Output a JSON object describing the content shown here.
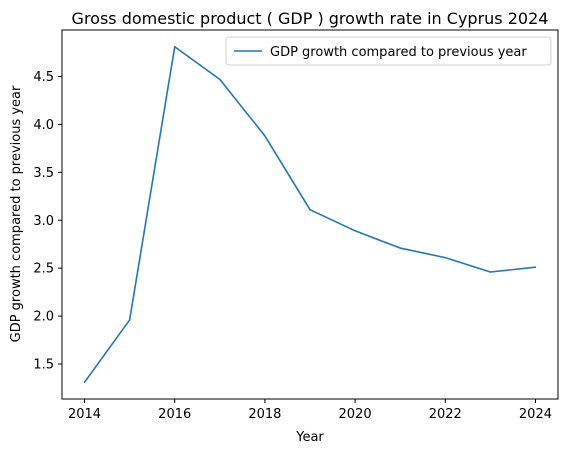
{
  "chart_data": {
    "type": "line",
    "title": "Gross domestic product ( GDP ) growth rate in Cyprus 2024",
    "xlabel": "Year",
    "ylabel": "GDP growth compared to previous year",
    "x": [
      2014,
      2015,
      2016,
      2017,
      2018,
      2019,
      2020,
      2021,
      2022,
      2023,
      2024
    ],
    "series": [
      {
        "name": "GDP growth compared to previous year",
        "values": [
          1.31,
          1.96,
          4.81,
          4.47,
          3.88,
          3.11,
          2.89,
          2.71,
          2.61,
          2.46,
          2.51
        ],
        "color": "#1f77b4"
      }
    ],
    "xticks": [
      "2014",
      "2016",
      "2018",
      "2020",
      "2022",
      "2024"
    ],
    "yticks": [
      "1.5",
      "2.0",
      "2.5",
      "3.0",
      "3.5",
      "4.0",
      "4.5"
    ],
    "xlim": [
      2013.5,
      2024.5
    ],
    "ylim": [
      1.135,
      4.985
    ],
    "grid": false,
    "legend_position": "top-right"
  }
}
